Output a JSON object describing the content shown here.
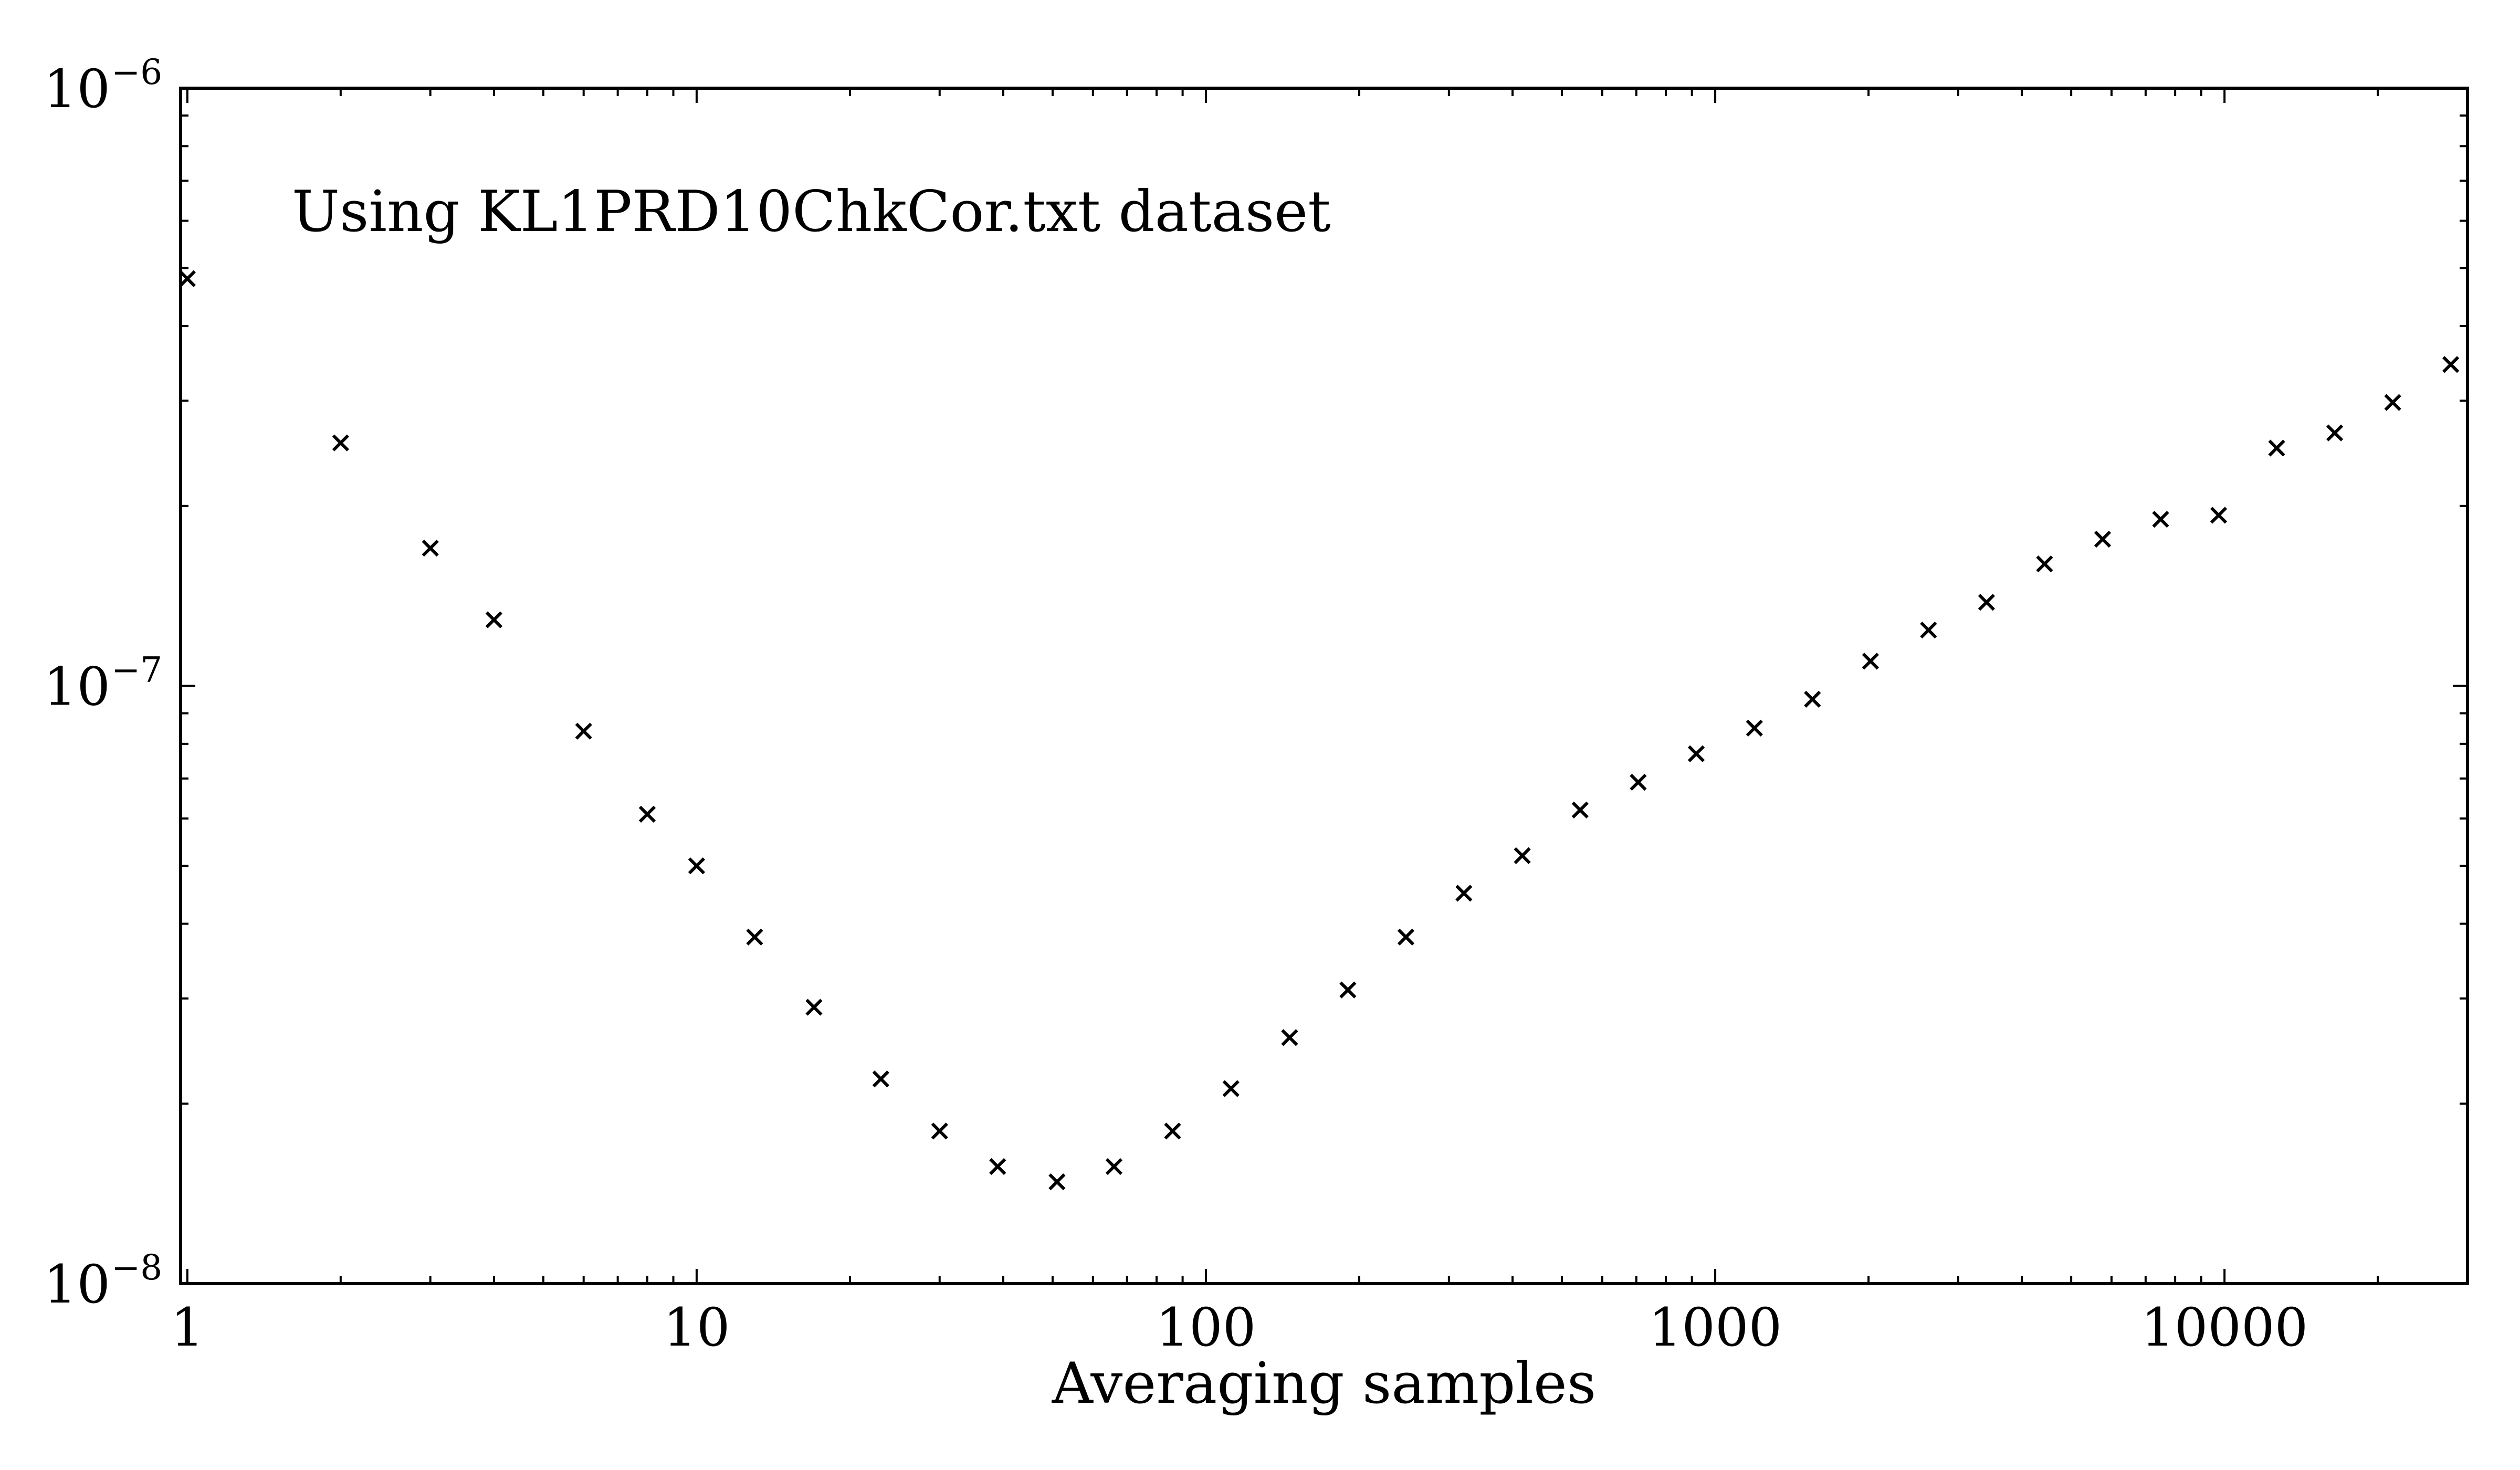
{
  "chart_data": {
    "type": "scatter",
    "title": "",
    "xlabel": "Averaging samples",
    "ylabel": "",
    "x_scale": "log",
    "y_scale": "log",
    "xlim": [
      0.97,
      30000
    ],
    "ylim": [
      1e-08,
      1e-06
    ],
    "grid": false,
    "legend": "none",
    "marker": "x",
    "marker_color": "#000000",
    "annotation": "Using KL1PRD10ChkCor.txt dataset",
    "x_tick_labels": [
      {
        "value": 1,
        "label": "1"
      },
      {
        "value": 10,
        "label": "10"
      },
      {
        "value": 100,
        "label": "100"
      },
      {
        "value": 1000,
        "label": "1000"
      },
      {
        "value": 10000,
        "label": "10000"
      }
    ],
    "y_tick_labels": [
      {
        "value": 1e-08,
        "base": "10",
        "exponent": "−8"
      },
      {
        "value": 1e-07,
        "base": "10",
        "exponent": "−7"
      },
      {
        "value": 1e-06,
        "base": "10",
        "exponent": "−6"
      }
    ],
    "series": [
      {
        "x": [
          1,
          2,
          3,
          4,
          6,
          8,
          10,
          13,
          17,
          23,
          30,
          39,
          51,
          66,
          86,
          112,
          146,
          190,
          247,
          321,
          418,
          543,
          706,
          918,
          1194,
          1552,
          2018,
          2623,
          3410,
          4433,
          5763,
          7492,
          9739,
          12661,
          16459,
          21397,
          27816
        ],
        "y": [
          4.8e-07,
          2.55e-07,
          1.7e-07,
          1.29e-07,
          8.4e-08,
          6.1e-08,
          5e-08,
          3.8e-08,
          2.9e-08,
          2.2e-08,
          1.8e-08,
          1.57e-08,
          1.48e-08,
          1.57e-08,
          1.8e-08,
          2.12e-08,
          2.58e-08,
          3.1e-08,
          3.8e-08,
          4.5e-08,
          5.2e-08,
          6.2e-08,
          6.9e-08,
          7.7e-08,
          8.5e-08,
          9.5e-08,
          1.1e-07,
          1.24e-07,
          1.38e-07,
          1.6e-07,
          1.76e-07,
          1.9e-07,
          1.93e-07,
          2.5e-07,
          2.65e-07,
          2.98e-07,
          3.45e-07
        ]
      }
    ]
  }
}
